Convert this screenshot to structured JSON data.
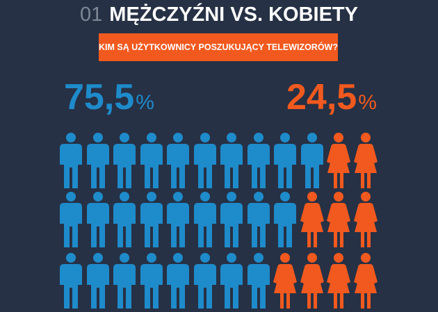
{
  "header": {
    "number": "01",
    "title": "MĘŻCZYŹNI VS. KOBIETY"
  },
  "banner": {
    "text": "KIM SĄ UŻYTKOWNICY POSZUKUJĄCY TELEWIZORÓW?"
  },
  "stats": {
    "men": {
      "value": "75,5",
      "unit": "%"
    },
    "women": {
      "value": "24,5",
      "unit": "%"
    }
  },
  "colors": {
    "background": "#263145",
    "men": "#1e8bcb",
    "women": "#f2591e"
  },
  "chart_data": {
    "type": "pictogram",
    "categories": [
      "Mężczyźni",
      "Kobiety"
    ],
    "values": [
      75.5,
      24.5
    ],
    "unit": "%",
    "rows": [
      {
        "men": 10,
        "women": 2
      },
      {
        "men": 9,
        "women": 3
      },
      {
        "men": 8,
        "women": 4
      }
    ]
  }
}
